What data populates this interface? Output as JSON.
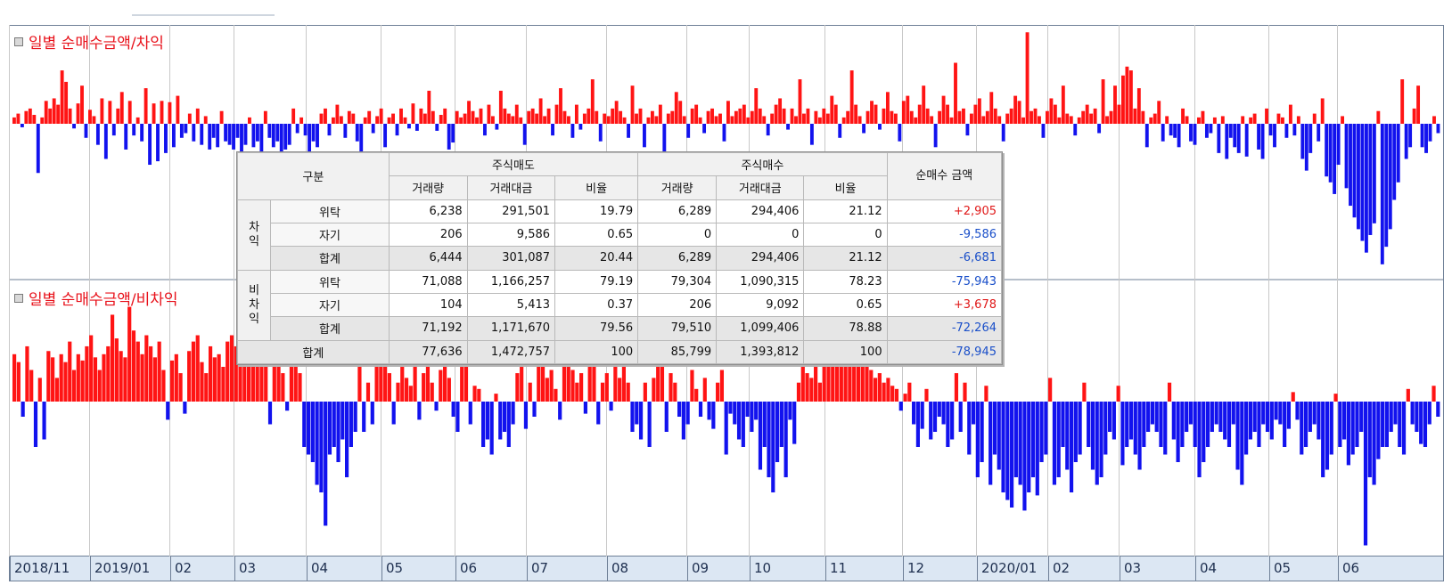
{
  "panels": [
    {
      "title": "일별 순매수금액/차익"
    },
    {
      "title": "일별 순매수금액/비차익"
    }
  ],
  "colors": {
    "positive": "#ff1414",
    "negative": "#1212ee",
    "grid": "#c8c8c8",
    "frame": "#6e7f96"
  },
  "x_axis_labels": [
    "2018/11",
    "2019/01",
    "02",
    "03",
    "04",
    "05",
    "06",
    "07",
    "08",
    "09",
    "10",
    "11",
    "12",
    "2020/01",
    "02",
    "03",
    "04",
    "05",
    "06"
  ],
  "summary_table": {
    "headers": {
      "category": "구분",
      "sell_group": "주식매도",
      "buy_group": "주식매수",
      "net": "순매수 금액",
      "volume": "거래량",
      "amount": "거래대금",
      "ratio": "비율"
    },
    "groups": [
      {
        "name": "차익",
        "chars": [
          "차",
          "익"
        ],
        "rows": [
          {
            "label": "위탁",
            "sell_volume": "6,238",
            "sell_amount": "291,501",
            "sell_ratio": "19.79",
            "buy_volume": "6,289",
            "buy_amount": "294,406",
            "buy_ratio": "21.12",
            "net": "+2,905"
          },
          {
            "label": "자기",
            "sell_volume": "206",
            "sell_amount": "9,586",
            "sell_ratio": "0.65",
            "buy_volume": "0",
            "buy_amount": "0",
            "buy_ratio": "0",
            "net": "-9,586"
          },
          {
            "label": "합계",
            "sell_volume": "6,444",
            "sell_amount": "301,087",
            "sell_ratio": "20.44",
            "buy_volume": "6,289",
            "buy_amount": "294,406",
            "buy_ratio": "21.12",
            "net": "-6,681"
          }
        ]
      },
      {
        "name": "비차익",
        "chars": [
          "비",
          "차",
          "익"
        ],
        "rows": [
          {
            "label": "위탁",
            "sell_volume": "71,088",
            "sell_amount": "1,166,257",
            "sell_ratio": "79.19",
            "buy_volume": "79,304",
            "buy_amount": "1,090,315",
            "buy_ratio": "78.23",
            "net": "-75,943"
          },
          {
            "label": "자기",
            "sell_volume": "104",
            "sell_amount": "5,413",
            "sell_ratio": "0.37",
            "buy_volume": "206",
            "buy_amount": "9,092",
            "buy_ratio": "0.65",
            "net": "+3,678"
          },
          {
            "label": "합계",
            "sell_volume": "71,192",
            "sell_amount": "1,171,670",
            "sell_ratio": "79.56",
            "buy_volume": "79,510",
            "buy_amount": "1,099,406",
            "buy_ratio": "78.88",
            "net": "-72,264"
          }
        ]
      }
    ],
    "total": {
      "label": "합계",
      "sell_volume": "77,636",
      "sell_amount": "1,472,757",
      "sell_ratio": "100",
      "buy_volume": "85,799",
      "buy_amount": "1,393,812",
      "buy_ratio": "100",
      "net": "-78,945"
    }
  },
  "chart_data": [
    {
      "type": "bar",
      "title": "일별 순매수금액/차익",
      "x_range": [
        "2018/11",
        "2020/06"
      ],
      "ylim": [
        -1.3,
        0.75
      ],
      "grid": true,
      "values": [
        0.05,
        0.08,
        -0.03,
        0.1,
        0.12,
        0.07,
        -0.42,
        0.05,
        0.18,
        0.12,
        0.2,
        0.15,
        0.42,
        0.33,
        0.12,
        -0.04,
        0.16,
        0.3,
        -0.12,
        0.11,
        0.06,
        -0.18,
        0.2,
        -0.3,
        0.18,
        -0.1,
        0.12,
        0.25,
        -0.22,
        0.18,
        -0.1,
        0.05,
        -0.15,
        0.28,
        -0.35,
        0.16,
        -0.32,
        0.18,
        -0.25,
        0.17,
        -0.2,
        0.22,
        -0.12,
        -0.08,
        0.08,
        -0.15,
        0.12,
        -0.18,
        0.06,
        -0.22,
        -0.12,
        -0.2,
        0.1,
        -0.15,
        -0.18,
        -0.22,
        -0.12,
        -0.25,
        -0.18,
        0.05,
        -0.2,
        -0.15,
        -0.25,
        0.1,
        -0.12,
        -0.2,
        -0.15,
        -0.25,
        -0.22,
        -0.18,
        0.12,
        -0.08,
        0.05,
        -0.1,
        -0.25,
        -0.15,
        -0.2,
        0.08,
        0.12,
        -0.1,
        0.05,
        0.15,
        0.06,
        -0.12,
        0.1,
        0.08,
        -0.15,
        -0.25,
        0.05,
        0.1,
        -0.08,
        0.06,
        0.12,
        -0.2,
        0.05,
        0.08,
        -0.1,
        0.12,
        0.05,
        -0.04,
        0.16,
        -0.06,
        0.12,
        0.08,
        0.26,
        0.1,
        -0.06,
        0.07,
        0.12,
        -0.22,
        -0.16,
        0.1,
        0.05,
        0.08,
        0.18,
        0.1,
        0.05,
        0.12,
        -0.1,
        0.15,
        0.06,
        -0.05,
        0.26,
        0.12,
        0.08,
        0.06,
        0.15,
        0.05,
        -0.18,
        0.1,
        0.12,
        0.08,
        0.2,
        0.06,
        0.12,
        -0.1,
        0.15,
        0.28,
        0.1,
        0.06,
        -0.12,
        0.15,
        -0.05,
        0.08,
        0.12,
        0.35,
        0.1,
        -0.15,
        0.08,
        0.06,
        0.12,
        0.18,
        0.1,
        0.05,
        -0.12,
        0.3,
        0.08,
        0.12,
        -0.2,
        0.05,
        0.1,
        0.06,
        0.15,
        -0.25,
        0.08,
        0.1,
        0.25,
        0.18,
        0.06,
        -0.12,
        0.12,
        0.15,
        0.05,
        -0.08,
        0.1,
        0.12,
        0.06,
        0.08,
        -0.15,
        0.18,
        0.06,
        0.1,
        0.12,
        0.15,
        0.05,
        0.1,
        0.28,
        0.12,
        0.06,
        -0.1,
        0.08,
        0.15,
        0.2,
        0.12,
        -0.05,
        0.12,
        0.06,
        0.35,
        0.08,
        0.12,
        -0.18,
        0.1,
        0.05,
        0.12,
        0.08,
        0.22,
        0.15,
        -0.12,
        0.05,
        0.1,
        0.42,
        0.15,
        0.06,
        -0.08,
        0.1,
        0.18,
        0.15,
        -0.05,
        0.12,
        0.25,
        0.1,
        0.08,
        -0.15,
        0.18,
        0.22,
        0.1,
        0.05,
        0.15,
        0.3,
        0.12,
        0.06,
        -0.2,
        0.1,
        0.22,
        0.15,
        0.05,
        0.48,
        0.1,
        0.12,
        -0.1,
        0.08,
        0.15,
        0.2,
        0.06,
        0.1,
        0.25,
        0.12,
        0.06,
        -0.15,
        0.08,
        0.12,
        0.22,
        0.18,
        0.05,
        0.72,
        0.1,
        0.12,
        0.06,
        -0.12,
        0.1,
        0.2,
        0.15,
        0.05,
        0.3,
        0.08,
        0.06,
        -0.1,
        0.05,
        0.1,
        0.15,
        0.08,
        0.12,
        -0.08,
        0.35,
        0.06,
        0.1,
        0.3,
        0.15,
        0.38,
        0.45,
        0.42,
        0.12,
        0.28,
        0.1,
        -0.2,
        0.05,
        0.08,
        0.18,
        -0.15,
        0.06,
        -0.1,
        -0.12,
        -0.2,
        0.12,
        0.06,
        -0.15,
        -0.18,
        0.05,
        0.1,
        -0.12,
        -0.08,
        0.05,
        -0.25,
        0.06,
        -0.3,
        -0.12,
        -0.2,
        -0.25,
        0.06,
        -0.28,
        0.05,
        0.08,
        -0.22,
        -0.3,
        0.12,
        -0.1,
        -0.2,
        0.08,
        0.05,
        -0.12,
        0.15,
        -0.1,
        0.06,
        -0.3,
        -0.4,
        -0.25,
        0.08,
        -0.15,
        0.2,
        -0.45,
        -0.5,
        -0.6,
        -0.35,
        0.06,
        -0.55,
        -0.7,
        -0.8,
        -0.9,
        -1.0,
        -1.1,
        -0.95,
        -0.85,
        0.1,
        -1.2,
        -1.05,
        -0.9,
        -0.65,
        -0.5,
        0.35,
        -0.3,
        -0.2,
        0.12,
        0.3,
        -0.2,
        -0.25,
        -0.15,
        0.06,
        -0.08
      ]
    },
    {
      "type": "bar",
      "title": "일별 순매수금액/비차익",
      "x_range": [
        "2018/11",
        "2020/06"
      ],
      "ylim": [
        -1.0,
        0.75
      ],
      "grid": true,
      "values": [
        0.3,
        0.25,
        -0.1,
        0.35,
        0.2,
        -0.3,
        0.15,
        -0.25,
        0.32,
        0.28,
        0.15,
        0.3,
        0.25,
        0.38,
        0.2,
        0.3,
        0.26,
        0.35,
        0.42,
        0.28,
        0.2,
        0.3,
        0.35,
        0.55,
        0.4,
        0.32,
        0.28,
        0.6,
        0.45,
        0.38,
        0.3,
        0.42,
        0.35,
        0.28,
        0.38,
        0.2,
        -0.12,
        0.26,
        0.3,
        0.18,
        -0.08,
        0.32,
        0.38,
        0.42,
        0.25,
        0.18,
        0.35,
        0.28,
        0.3,
        0.22,
        0.38,
        0.42,
        0.35,
        0.32,
        0.4,
        0.28,
        0.3,
        0.35,
        0.28,
        0.22,
        -0.15,
        0.3,
        0.25,
        0.18,
        -0.06,
        0.28,
        0.22,
        0.18,
        -0.3,
        -0.35,
        -0.4,
        -0.55,
        -0.6,
        -0.82,
        -0.35,
        -0.3,
        -0.4,
        -0.25,
        -0.5,
        -0.3,
        -0.2,
        0.3,
        -0.2,
        0.12,
        -0.15,
        0.35,
        0.28,
        0.22,
        0.18,
        -0.15,
        0.12,
        0.28,
        0.15,
        0.1,
        0.3,
        -0.12,
        0.18,
        0.25,
        0.12,
        -0.06,
        0.2,
        0.28,
        0.15,
        -0.1,
        -0.2,
        0.22,
        0.25,
        -0.15,
        0.1,
        0.08,
        -0.3,
        -0.25,
        -0.35,
        0.05,
        -0.25,
        -0.2,
        -0.3,
        -0.15,
        0.18,
        0.25,
        -0.18,
        0.12,
        -0.1,
        0.22,
        0.28,
        0.15,
        0.2,
        0.08,
        -0.12,
        0.3,
        0.26,
        0.2,
        0.12,
        0.18,
        -0.08,
        0.22,
        0.25,
        -0.15,
        0.12,
        0.18,
        -0.06,
        0.28,
        0.15,
        0.22,
        0.12,
        -0.2,
        -0.15,
        -0.25,
        0.12,
        -0.3,
        0.15,
        0.22,
        0.26,
        -0.2,
        0.18,
        0.12,
        -0.1,
        -0.25,
        -0.15,
        0.2,
        0.08,
        -0.1,
        0.15,
        -0.12,
        -0.18,
        0.12,
        0.2,
        -0.35,
        -0.08,
        -0.15,
        -0.25,
        -0.3,
        -0.1,
        -0.2,
        -0.12,
        -0.45,
        -0.3,
        -0.5,
        -0.6,
        -0.4,
        -0.3,
        -0.5,
        -0.12,
        -0.28,
        0.12,
        0.22,
        0.18,
        0.15,
        0.28,
        0.12,
        0.35,
        0.3,
        0.25,
        0.4,
        0.38,
        0.35,
        0.32,
        0.28,
        0.22,
        0.3,
        0.25,
        0.2,
        0.15,
        0.18,
        0.12,
        0.15,
        0.1,
        0.08,
        -0.06,
        0.05,
        0.12,
        -0.15,
        -0.3,
        -0.18,
        0.08,
        -0.25,
        -0.2,
        -0.1,
        -0.15,
        -0.3,
        -0.25,
        0.18,
        -0.2,
        0.12,
        -0.35,
        -0.15,
        -0.5,
        -0.4,
        0.1,
        -0.55,
        -0.35,
        -0.45,
        -0.6,
        -0.65,
        -0.7,
        -0.5,
        -0.55,
        -0.72,
        -0.6,
        -0.5,
        -0.62,
        -0.4,
        -0.35,
        0.15,
        -0.55,
        -0.5,
        -0.3,
        -0.45,
        -0.6,
        -0.4,
        -0.35,
        0.12,
        -0.3,
        -0.45,
        -0.55,
        -0.5,
        -0.35,
        -0.2,
        -0.25,
        0.1,
        -0.42,
        -0.3,
        -0.25,
        -0.35,
        -0.45,
        -0.3,
        -0.2,
        -0.15,
        -0.2,
        -0.3,
        -0.35,
        0.12,
        -0.25,
        -0.4,
        -0.3,
        -0.2,
        -0.15,
        -0.3,
        -0.5,
        -0.4,
        -0.3,
        -0.2,
        -0.15,
        -0.2,
        -0.25,
        -0.3,
        -0.15,
        -0.45,
        -0.55,
        -0.35,
        -0.25,
        -0.2,
        -0.3,
        -0.15,
        -0.2,
        -0.25,
        -0.12,
        -0.15,
        -0.3,
        -0.18,
        0.06,
        -0.12,
        -0.35,
        -0.3,
        -0.2,
        -0.15,
        -0.25,
        -0.5,
        -0.45,
        -0.35,
        0.05,
        -0.3,
        -0.25,
        -0.42,
        -0.35,
        -0.3,
        -0.2,
        -0.95,
        -0.5,
        -0.55,
        -0.38,
        -0.3,
        -0.3,
        -0.2,
        -0.15,
        -0.3,
        -0.35,
        0.08,
        -0.15,
        -0.2,
        -0.28,
        -0.3,
        -0.15,
        0.1,
        -0.1
      ]
    }
  ]
}
